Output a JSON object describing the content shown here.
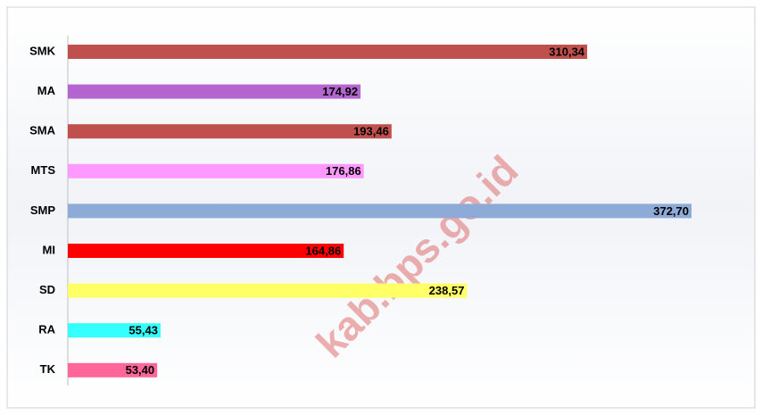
{
  "chart_data": {
    "type": "bar",
    "orientation": "horizontal",
    "categories": [
      "SMK",
      "MA",
      "SMA",
      "MTS",
      "SMP",
      "MI",
      "SD",
      "RA",
      "TK"
    ],
    "values": [
      310.34,
      174.92,
      193.46,
      176.86,
      372.7,
      164.86,
      238.57,
      55.43,
      53.4
    ],
    "value_labels": [
      "310,34",
      "174,92",
      "193,46",
      "176,86",
      "372,70",
      "164,86",
      "238,57",
      "55,43",
      "53,40"
    ],
    "colors": [
      "#c0504d",
      "#b565d0",
      "#c0504d",
      "#ff99ff",
      "#8eaad6",
      "#ff0000",
      "#ffff66",
      "#33ffff",
      "#ff6699"
    ],
    "watermark": "kab.bps.go.id"
  }
}
